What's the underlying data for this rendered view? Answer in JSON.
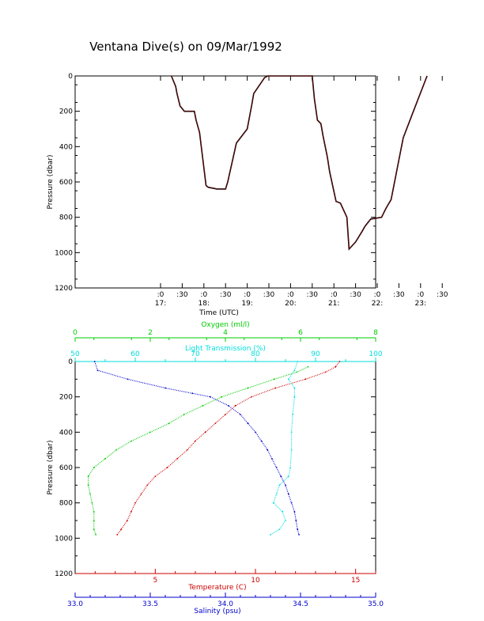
{
  "title": "Ventana Dive(s) on 09/Mar/1992",
  "chart_data": [
    {
      "type": "line",
      "title": "Ventana Dive(s) on 09/Mar/1992",
      "xlabel": "Time (UTC)",
      "ylabel": "Pressure (dbar)",
      "y_inverted": true,
      "ylim": [
        1200,
        0
      ],
      "y_ticks": [
        "0",
        "200",
        "400",
        "600",
        "800",
        "1000",
        "1200"
      ],
      "x_ticks_minor": [
        ":0",
        ":30",
        ":0",
        ":30",
        ":0",
        ":30",
        ":0",
        ":30",
        ":0",
        ":30",
        ":0",
        ":30",
        ":0",
        ":30"
      ],
      "x_ticks_hours": [
        "17:",
        "18:",
        "19:",
        "20:",
        "21:",
        "22:",
        "23:"
      ],
      "xlim_hours": [
        17.0,
        23.5
      ],
      "grid": false,
      "line_colors": {
        "outer": "#000000",
        "inner": "#cc0000"
      },
      "x_hours": [
        17.25,
        17.35,
        17.38,
        17.45,
        17.55,
        17.78,
        17.82,
        17.9,
        18.05,
        18.1,
        18.3,
        18.5,
        18.55,
        18.75,
        19.0,
        19.1,
        19.15,
        19.4,
        19.47,
        19.55,
        20.5,
        20.55,
        20.62,
        20.7,
        20.75,
        20.85,
        20.9,
        21.05,
        21.15,
        21.3,
        21.35,
        21.5,
        21.65,
        21.72,
        21.85,
        22.1,
        22.2,
        22.32,
        22.6,
        22.85,
        23.15
      ],
      "pressure": [
        0,
        60,
        100,
        170,
        200,
        200,
        250,
        320,
        620,
        630,
        640,
        640,
        600,
        380,
        300,
        170,
        100,
        10,
        0,
        0,
        0,
        130,
        250,
        270,
        340,
        460,
        540,
        710,
        720,
        800,
        980,
        940,
        880,
        850,
        810,
        800,
        750,
        700,
        350,
        190,
        0
      ]
    },
    {
      "type": "scatter",
      "ylabel": "Pressure (dbar)",
      "y_inverted": true,
      "ylim": [
        1200,
        0
      ],
      "y_ticks": [
        "0",
        "200",
        "400",
        "600",
        "800",
        "1000",
        "1200"
      ],
      "grid": false,
      "axes": {
        "oxygen": {
          "label": "Oxygen (ml/l)",
          "range": [
            0,
            8
          ],
          "ticks": [
            "0",
            "2",
            "4",
            "6",
            "8"
          ],
          "color": "#00cc00"
        },
        "light": {
          "label": "Light Transmission (%)",
          "range": [
            50,
            100
          ],
          "ticks": [
            "50",
            "60",
            "70",
            "80",
            "90",
            "100"
          ],
          "color": "#00dddd"
        },
        "temperature": {
          "label": "Temperature (C)",
          "range": [
            1,
            16
          ],
          "ticks": [
            "5",
            "10",
            "15"
          ],
          "color": "#cc0000"
        },
        "salinity": {
          "label": "Salinity (psu)",
          "range": [
            33.0,
            35.0
          ],
          "ticks": [
            "33.0",
            "33.5",
            "34.0",
            "34.5",
            "35.0"
          ],
          "color": "#0000cc"
        }
      },
      "series": [
        {
          "axis": "oxygen",
          "pressure": [
            30,
            60,
            100,
            150,
            200,
            250,
            300,
            350,
            400,
            450,
            500,
            550,
            600,
            650,
            700,
            750,
            800,
            850,
            900,
            950,
            980
          ],
          "values": [
            6.2,
            5.9,
            5.3,
            4.6,
            3.9,
            3.4,
            2.9,
            2.5,
            2.0,
            1.5,
            1.1,
            0.8,
            0.5,
            0.35,
            0.35,
            0.4,
            0.45,
            0.5,
            0.5,
            0.5,
            0.55
          ]
        },
        {
          "axis": "temperature",
          "pressure": [
            0,
            30,
            60,
            100,
            150,
            200,
            250,
            300,
            350,
            400,
            450,
            500,
            550,
            600,
            650,
            700,
            750,
            800,
            850,
            900,
            950,
            980
          ],
          "values": [
            14.2,
            14.0,
            13.5,
            12.5,
            11.0,
            9.8,
            9.0,
            8.5,
            8.0,
            7.5,
            7.0,
            6.6,
            6.1,
            5.6,
            5.0,
            4.6,
            4.3,
            4.0,
            3.8,
            3.6,
            3.3,
            3.1
          ]
        },
        {
          "axis": "salinity",
          "pressure": [
            0,
            50,
            100,
            150,
            180,
            200,
            250,
            300,
            350,
            400,
            450,
            500,
            550,
            600,
            650,
            700,
            750,
            800,
            850,
            900,
            950,
            980
          ],
          "values": [
            33.13,
            33.15,
            33.35,
            33.6,
            33.78,
            33.9,
            34.02,
            34.1,
            34.15,
            34.2,
            34.24,
            34.28,
            34.31,
            34.34,
            34.37,
            34.4,
            34.42,
            34.44,
            34.46,
            34.47,
            34.48,
            34.49
          ]
        },
        {
          "axis": "light",
          "pressure": [
            0,
            50,
            100,
            150,
            200,
            300,
            400,
            500,
            600,
            650,
            700,
            750,
            800,
            850,
            900,
            950,
            980
          ],
          "values": [
            87.0,
            86.5,
            85.5,
            86.5,
            86.5,
            86.2,
            86.0,
            86.0,
            85.8,
            85.5,
            84.0,
            83.5,
            83.0,
            84.5,
            85.0,
            84.0,
            82.5
          ]
        }
      ]
    }
  ]
}
